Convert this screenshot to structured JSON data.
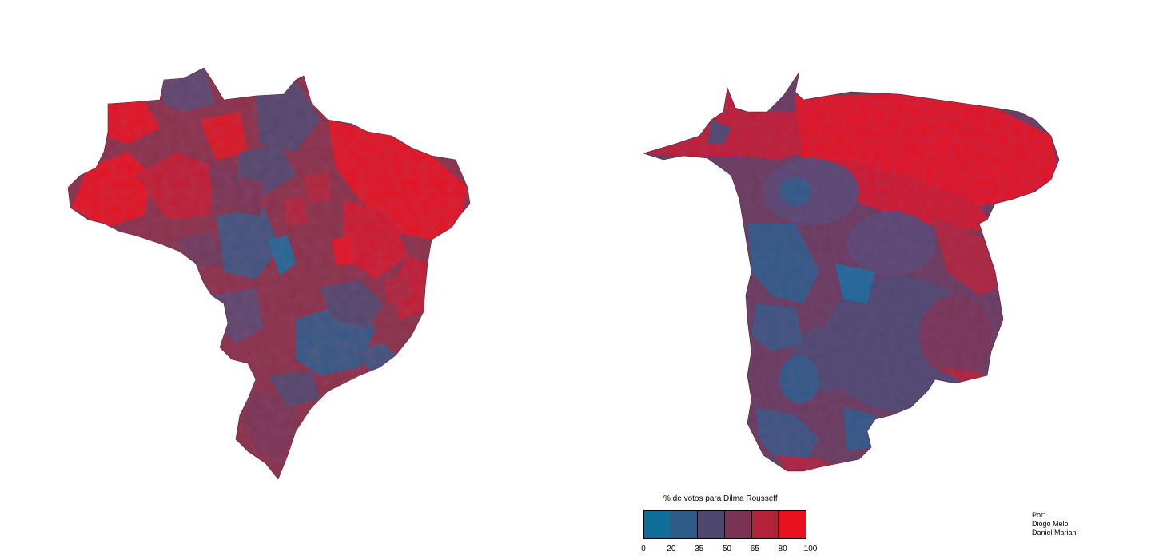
{
  "legend": {
    "title": "% de votos para  Dilma Rousseff",
    "colors": [
      "#0f6d9a",
      "#2e5a86",
      "#4e476e",
      "#7a3352",
      "#b22238",
      "#e8101e"
    ],
    "ticks": [
      "0",
      "20",
      "35",
      "50",
      "65",
      "80",
      "100"
    ]
  },
  "credits": {
    "heading": "Por:",
    "authors": [
      "Diogo Melo",
      "Daniel Mariani"
    ]
  }
}
